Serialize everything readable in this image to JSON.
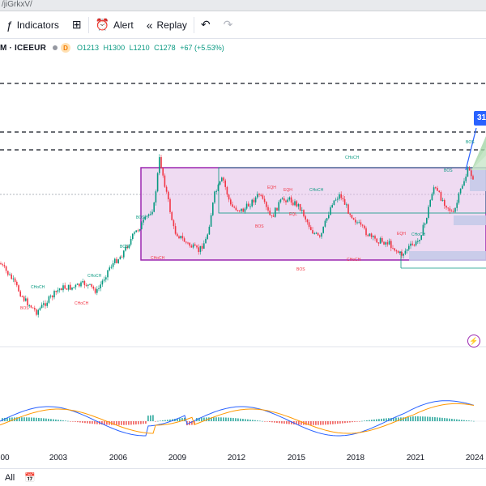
{
  "browser": {
    "url_fragment": "/jiGrkxV/"
  },
  "toolbar": {
    "indicators_label": "Indicators",
    "alert_label": "Alert",
    "replay_label": "Replay"
  },
  "symbol": {
    "name": "M · ICEEUR",
    "badge": "D",
    "open": "O1213",
    "high": "H1300",
    "low": "L1210",
    "close": "C1278",
    "change": "+67 (+5.53%)"
  },
  "price_tag": "31",
  "x_axis_labels": [
    "00",
    "2003",
    "2006",
    "2009",
    "2012",
    "2015",
    "2018",
    "2021",
    "2024"
  ],
  "annotations": {
    "bos": "BOS",
    "choch": "CHoCH",
    "eqh": "EQH",
    "eql": "EQL"
  },
  "bottombar": {
    "all_label": "All"
  },
  "colors": {
    "up": "#089981",
    "down": "#f23645",
    "box_fill": "#e1bee7",
    "box_border": "#9c27b0",
    "zone_blue": "#c5cae9",
    "macd": "#2962ff",
    "signal": "#ff9800"
  }
}
